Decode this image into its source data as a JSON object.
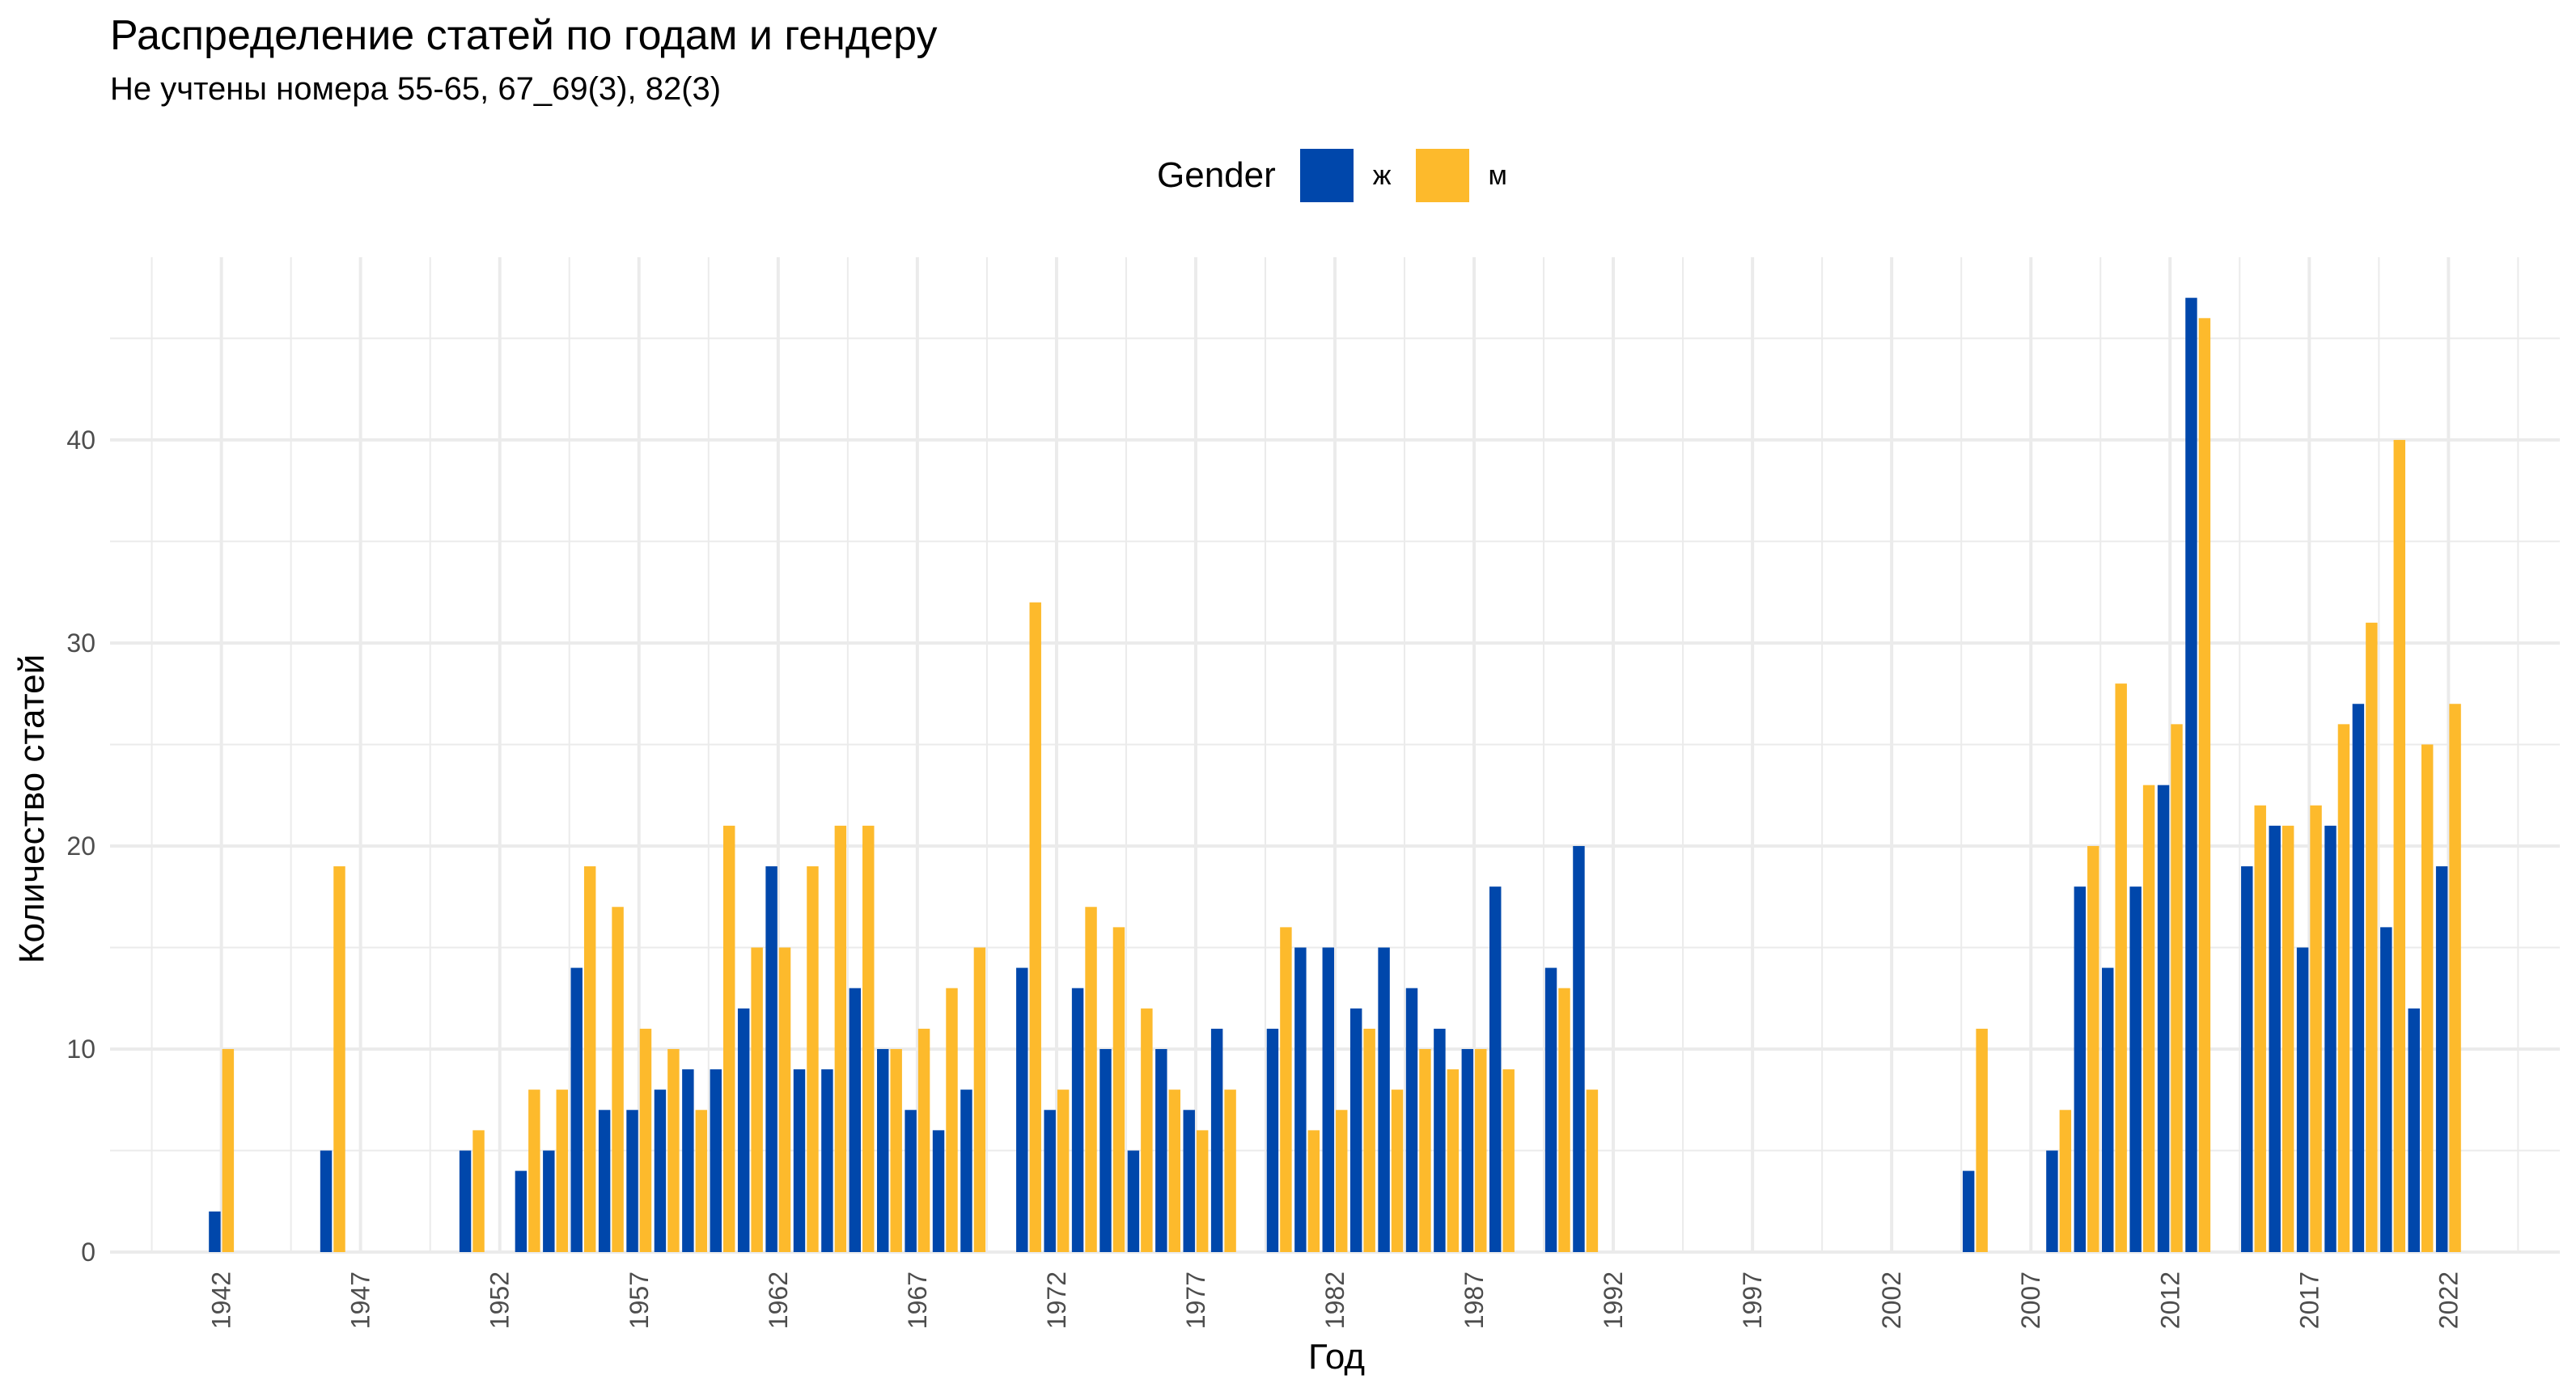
{
  "chart_data": {
    "type": "bar",
    "title": "Распределение статей по годам и гендеру",
    "subtitle": "Не учтены номера 55-65, 67_69(3), 82(3)",
    "xlabel": "Год",
    "ylabel": "Количество статей",
    "legend_title": "Gender",
    "legend_placement": "top",
    "grid": true,
    "xlim": [
      1938,
      2026
    ],
    "ylim": [
      0,
      49
    ],
    "x_ticks": [
      1942,
      1947,
      1952,
      1957,
      1962,
      1967,
      1972,
      1977,
      1982,
      1987,
      1992,
      1997,
      2002,
      2007,
      2012,
      2017,
      2022
    ],
    "y_ticks": [
      0,
      10,
      20,
      30,
      40
    ],
    "series": [
      {
        "name": "ж",
        "color": "#0047AB",
        "points": [
          [
            1942,
            2
          ],
          [
            1946,
            5
          ],
          [
            1951,
            5
          ],
          [
            1953,
            4
          ],
          [
            1954,
            5
          ],
          [
            1955,
            14
          ],
          [
            1956,
            7
          ],
          [
            1957,
            7
          ],
          [
            1958,
            8
          ],
          [
            1959,
            9
          ],
          [
            1960,
            9
          ],
          [
            1961,
            12
          ],
          [
            1962,
            19
          ],
          [
            1963,
            9
          ],
          [
            1964,
            9
          ],
          [
            1965,
            13
          ],
          [
            1966,
            10
          ],
          [
            1967,
            7
          ],
          [
            1968,
            6
          ],
          [
            1969,
            8
          ],
          [
            1971,
            14
          ],
          [
            1972,
            7
          ],
          [
            1973,
            13
          ],
          [
            1974,
            10
          ],
          [
            1975,
            5
          ],
          [
            1976,
            10
          ],
          [
            1977,
            7
          ],
          [
            1978,
            11
          ],
          [
            1980,
            11
          ],
          [
            1981,
            15
          ],
          [
            1982,
            15
          ],
          [
            1983,
            12
          ],
          [
            1984,
            15
          ],
          [
            1985,
            13
          ],
          [
            1986,
            11
          ],
          [
            1987,
            10
          ],
          [
            1988,
            18
          ],
          [
            1990,
            14
          ],
          [
            1991,
            20
          ],
          [
            2005,
            4
          ],
          [
            2008,
            5
          ],
          [
            2009,
            18
          ],
          [
            2010,
            14
          ],
          [
            2011,
            18
          ],
          [
            2012,
            23
          ],
          [
            2013,
            47
          ],
          [
            2015,
            19
          ],
          [
            2016,
            21
          ],
          [
            2017,
            15
          ],
          [
            2018,
            21
          ],
          [
            2019,
            27
          ],
          [
            2020,
            16
          ],
          [
            2021,
            12
          ],
          [
            2022,
            19
          ]
        ]
      },
      {
        "name": "м",
        "color": "#FDBA2C",
        "points": [
          [
            1942,
            10
          ],
          [
            1946,
            19
          ],
          [
            1951,
            6
          ],
          [
            1953,
            8
          ],
          [
            1954,
            8
          ],
          [
            1955,
            19
          ],
          [
            1956,
            17
          ],
          [
            1957,
            11
          ],
          [
            1958,
            10
          ],
          [
            1959,
            7
          ],
          [
            1960,
            21
          ],
          [
            1961,
            15
          ],
          [
            1962,
            15
          ],
          [
            1963,
            19
          ],
          [
            1964,
            21
          ],
          [
            1965,
            21
          ],
          [
            1966,
            10
          ],
          [
            1967,
            11
          ],
          [
            1968,
            13
          ],
          [
            1969,
            15
          ],
          [
            1971,
            32
          ],
          [
            1972,
            8
          ],
          [
            1973,
            17
          ],
          [
            1974,
            16
          ],
          [
            1975,
            12
          ],
          [
            1976,
            8
          ],
          [
            1977,
            6
          ],
          [
            1978,
            8
          ],
          [
            1980,
            16
          ],
          [
            1981,
            6
          ],
          [
            1982,
            7
          ],
          [
            1983,
            11
          ],
          [
            1984,
            8
          ],
          [
            1985,
            10
          ],
          [
            1986,
            9
          ],
          [
            1987,
            10
          ],
          [
            1988,
            9
          ],
          [
            1990,
            13
          ],
          [
            1991,
            8
          ],
          [
            2005,
            11
          ],
          [
            2008,
            7
          ],
          [
            2009,
            20
          ],
          [
            2010,
            28
          ],
          [
            2011,
            23
          ],
          [
            2012,
            26
          ],
          [
            2013,
            46
          ],
          [
            2015,
            22
          ],
          [
            2016,
            21
          ],
          [
            2017,
            22
          ],
          [
            2018,
            26
          ],
          [
            2019,
            31
          ],
          [
            2020,
            40
          ],
          [
            2021,
            25
          ],
          [
            2022,
            27
          ]
        ]
      }
    ]
  }
}
